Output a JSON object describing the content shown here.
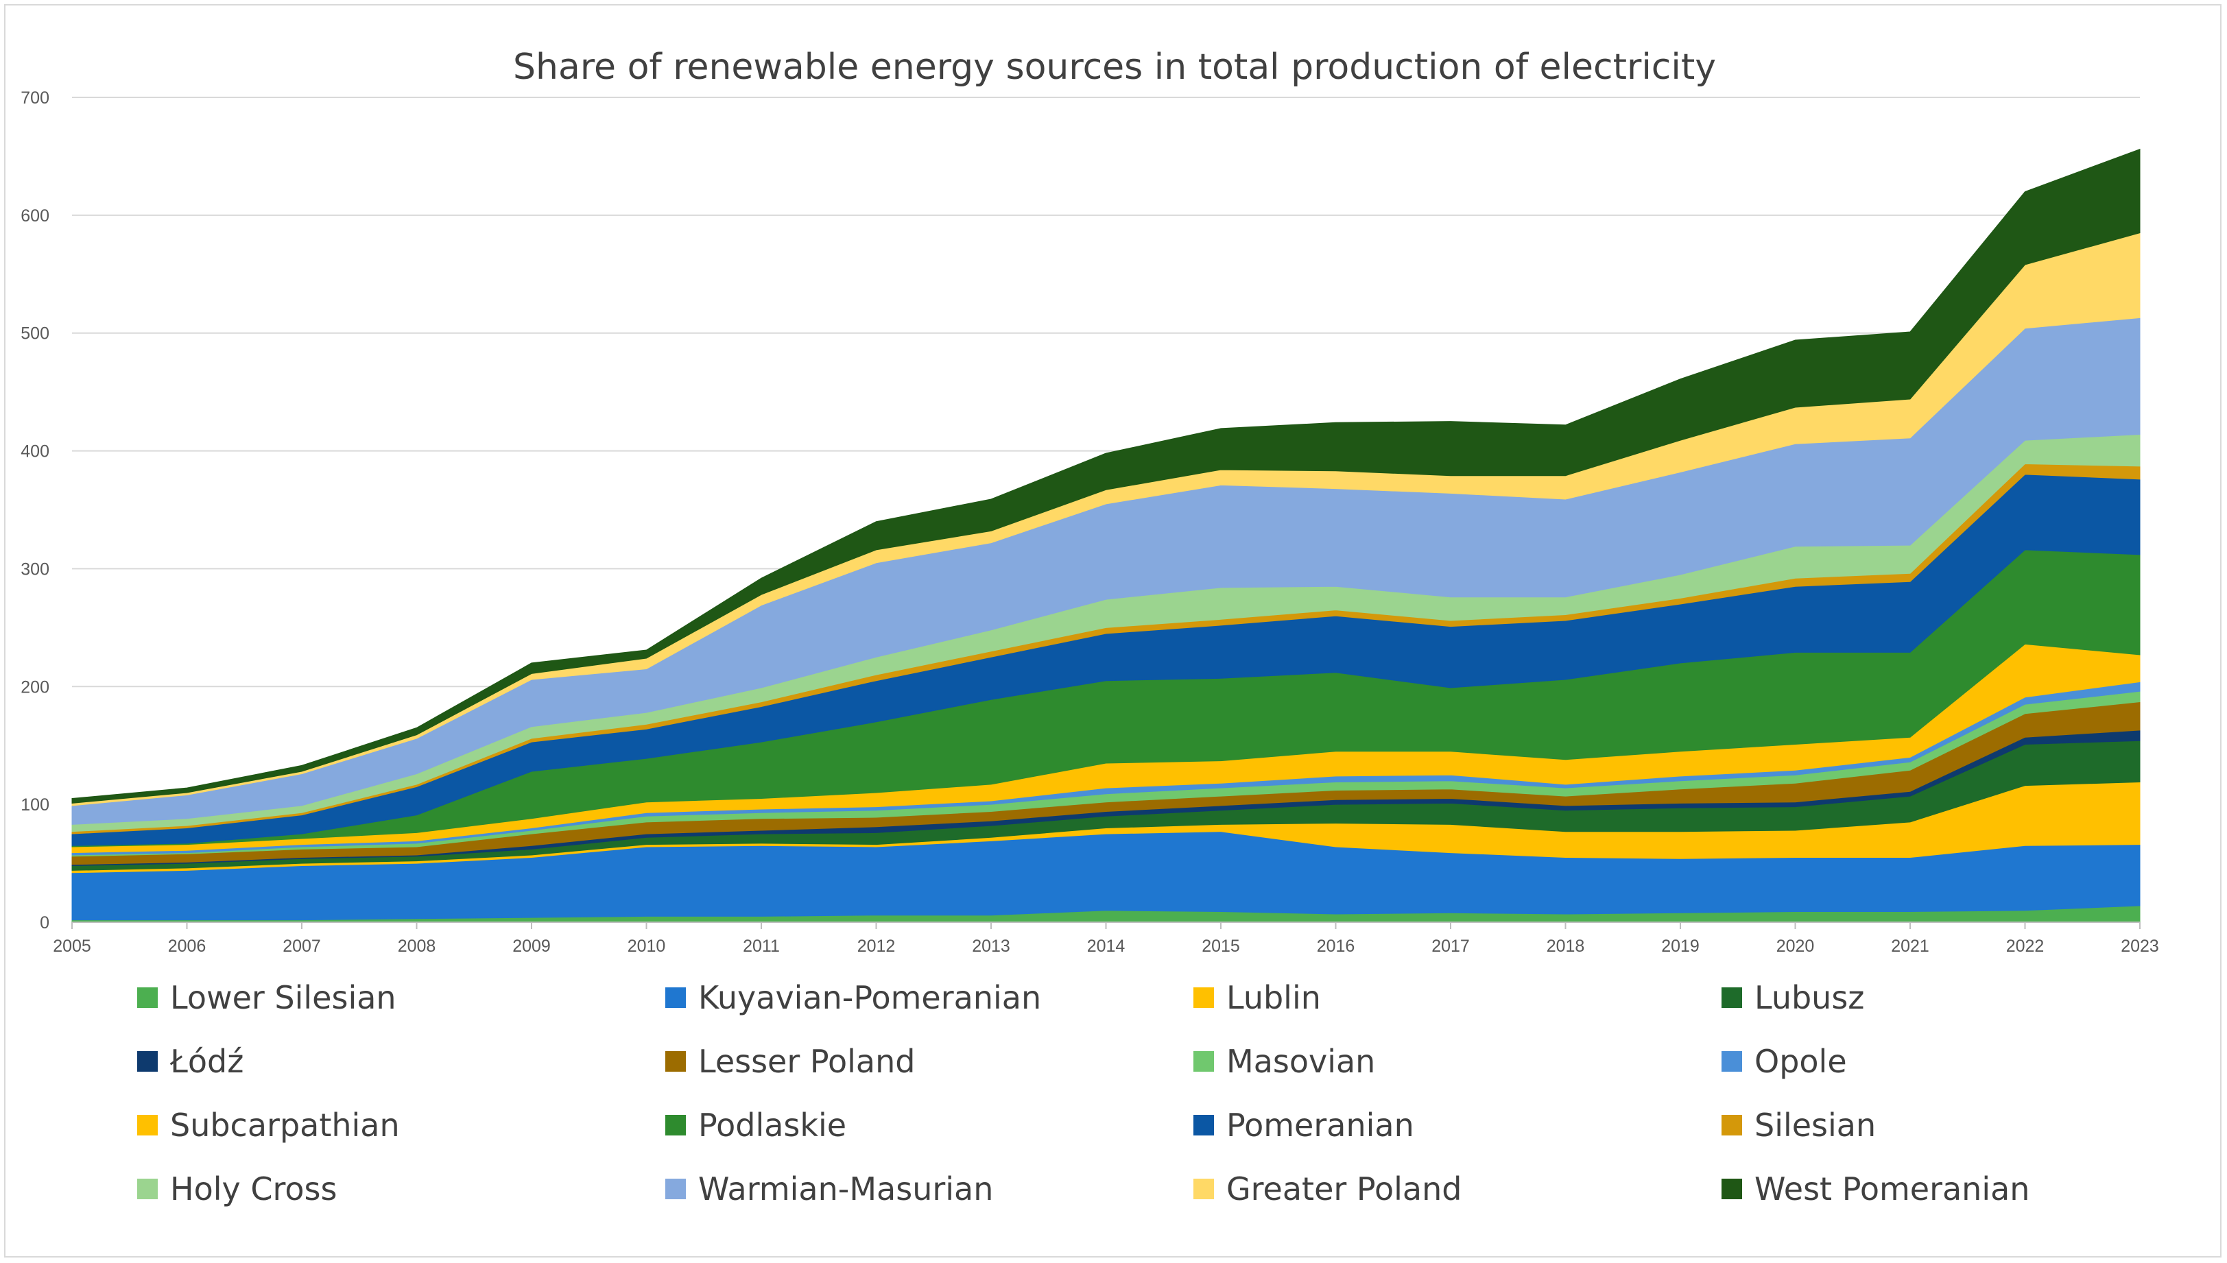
{
  "chart_data": {
    "type": "area",
    "stacked": true,
    "title": "Share of renewable energy sources in total production of electricity",
    "xlabel": "",
    "ylabel": "",
    "ylim": [
      0,
      700
    ],
    "yticks": [
      0,
      100,
      200,
      300,
      400,
      500,
      600,
      700
    ],
    "grid": true,
    "legend_position": "bottom",
    "x": [
      "2005",
      "2006",
      "2007",
      "2008",
      "2009",
      "2010",
      "2011",
      "2012",
      "2013",
      "2014",
      "2015",
      "2016",
      "2017",
      "2018",
      "2019",
      "2020",
      "2021",
      "2022",
      "2023"
    ],
    "series": [
      {
        "name": "Lower Silesian",
        "color": "#4CAF50",
        "values": [
          2,
          2,
          2,
          3,
          4,
          5,
          5,
          6,
          6,
          10,
          9,
          7,
          8,
          7,
          8,
          9,
          9,
          10,
          14
        ]
      },
      {
        "name": "Kuyavian-Pomeranian",
        "color": "#1F77D0",
        "values": [
          40,
          42,
          46,
          47,
          51,
          59,
          60,
          58,
          63,
          65,
          68,
          57,
          51,
          48,
          46,
          46,
          46,
          55,
          52
        ]
      },
      {
        "name": "Lublin",
        "color": "#FFC000",
        "values": [
          2,
          2,
          2,
          2,
          2,
          2,
          2,
          2,
          3,
          5,
          6,
          20,
          24,
          22,
          23,
          23,
          30,
          51,
          53
        ]
      },
      {
        "name": "Lubusz",
        "color": "#1E6B2A",
        "values": [
          4,
          4,
          4,
          4,
          5,
          6,
          8,
          10,
          10,
          10,
          12,
          16,
          18,
          18,
          20,
          20,
          22,
          35,
          35
        ]
      },
      {
        "name": "Łódź",
        "color": "#0E3A6E",
        "values": [
          1,
          1,
          1,
          1,
          3,
          3,
          3,
          5,
          4,
          4,
          4,
          4,
          4,
          4,
          4,
          4,
          4,
          6,
          9
        ]
      },
      {
        "name": "Lesser Poland",
        "color": "#9C6C00",
        "values": [
          7,
          7,
          7,
          7,
          10,
          10,
          10,
          8,
          8,
          8,
          8,
          8,
          8,
          8,
          12,
          16,
          18,
          20,
          24
        ]
      },
      {
        "name": "Masovian",
        "color": "#70C86E",
        "values": [
          1,
          1,
          2,
          3,
          3,
          5,
          5,
          6,
          6,
          7,
          7,
          7,
          7,
          7,
          7,
          7,
          7,
          8,
          9
        ]
      },
      {
        "name": "Opole",
        "color": "#4A8FD8",
        "values": [
          2,
          2,
          2,
          2,
          2,
          3,
          3,
          3,
          3,
          5,
          4,
          5,
          5,
          3,
          4,
          4,
          4,
          6,
          8
        ]
      },
      {
        "name": "Subcarpathian",
        "color": "#FFC000",
        "values": [
          5,
          5,
          5,
          7,
          8,
          9,
          9,
          12,
          14,
          21,
          19,
          21,
          20,
          21,
          21,
          22,
          17,
          45,
          23
        ]
      },
      {
        "name": "Podlaskie",
        "color": "#2E8B2E",
        "values": [
          1,
          1,
          4,
          15,
          40,
          37,
          48,
          60,
          72,
          70,
          70,
          67,
          54,
          68,
          75,
          78,
          72,
          80,
          85
        ]
      },
      {
        "name": "Pomeranian",
        "color": "#0B57A4",
        "values": [
          10,
          13,
          16,
          24,
          25,
          25,
          30,
          35,
          36,
          40,
          45,
          48,
          52,
          50,
          50,
          56,
          60,
          64,
          64
        ]
      },
      {
        "name": "Silesian",
        "color": "#D4980A",
        "values": [
          2,
          2,
          2,
          2,
          3,
          4,
          4,
          5,
          5,
          5,
          5,
          5,
          5,
          5,
          5,
          7,
          7,
          9,
          11
        ]
      },
      {
        "name": "Holy Cross",
        "color": "#9BD48F",
        "values": [
          6,
          6,
          6,
          9,
          10,
          10,
          12,
          15,
          18,
          24,
          27,
          20,
          20,
          15,
          20,
          27,
          24,
          20,
          27
        ]
      },
      {
        "name": "Warmian-Masurian",
        "color": "#85A9DE",
        "values": [
          16,
          20,
          27,
          30,
          40,
          37,
          70,
          80,
          74,
          81,
          87,
          83,
          88,
          83,
          87,
          87,
          91,
          95,
          99
        ]
      },
      {
        "name": "Greater Poland",
        "color": "#FFD966",
        "values": [
          2,
          2,
          2,
          3,
          5,
          9,
          9,
          11,
          10,
          12,
          13,
          15,
          15,
          20,
          27,
          31,
          33,
          54,
          72
        ]
      },
      {
        "name": "West Pomeranian",
        "color": "#1F5715",
        "values": [
          4,
          4,
          5,
          6,
          9,
          7,
          14,
          24,
          27,
          31,
          35,
          41,
          46,
          43,
          52,
          57,
          57,
          62,
          71
        ]
      }
    ]
  }
}
